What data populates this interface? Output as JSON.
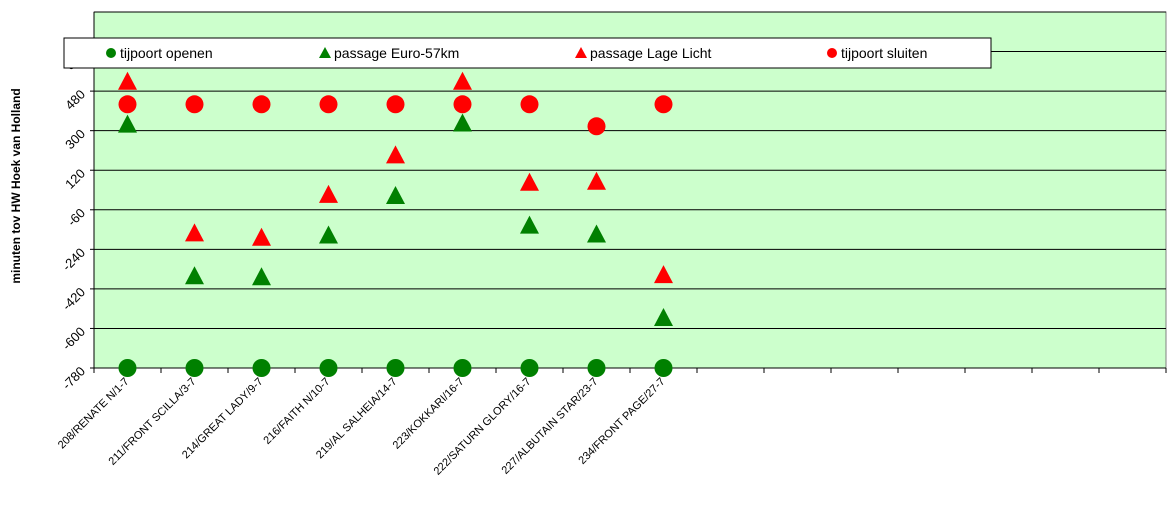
{
  "chart_data": {
    "type": "scatter",
    "title": "",
    "xlabel": "",
    "ylabel": "minuten tov HW Hoek van Holland",
    "ylim": [
      -780,
      840
    ],
    "y_ticks": [
      "-780",
      "-600",
      "-420",
      "-240",
      "-60",
      "120",
      "300",
      "480",
      "660"
    ],
    "categories": [
      "208/RENATE N/1-7",
      "211/FRONT SCILLA/3-7",
      "214/GREAT LADY/9-7",
      "216/FAITH N/10-7",
      "219/AL SALHEIA/14-7",
      "223/KOKKARI/16-7",
      "222/SATURN GLORY/16-7",
      "227/ALBUTAIN STAR/23-7",
      "234/FRONT PAGE/27-7"
    ],
    "total_slots": 16,
    "grid": true,
    "legend_position": "top",
    "plot_background": "#ccffcc",
    "series": [
      {
        "name": "tijpoort openen",
        "marker": "circle",
        "color": "#008000",
        "values": [
          -780,
          -780,
          -780,
          -780,
          -780,
          -780,
          -780,
          -780,
          -780
        ]
      },
      {
        "name": "passage Euro-57km",
        "marker": "triangle",
        "color": "#008000",
        "values": [
          330,
          -360,
          -365,
          -175,
          5,
          335,
          -130,
          -170,
          -550
        ]
      },
      {
        "name": "passage Lage Licht",
        "marker": "triangle",
        "color": "#ff0000",
        "values": [
          525,
          -165,
          -185,
          10,
          190,
          525,
          65,
          70,
          -355
        ]
      },
      {
        "name": "tijpoort sluiten",
        "marker": "circle",
        "color": "#ff0000",
        "values": [
          420,
          420,
          420,
          420,
          420,
          420,
          420,
          320,
          420
        ]
      }
    ]
  }
}
